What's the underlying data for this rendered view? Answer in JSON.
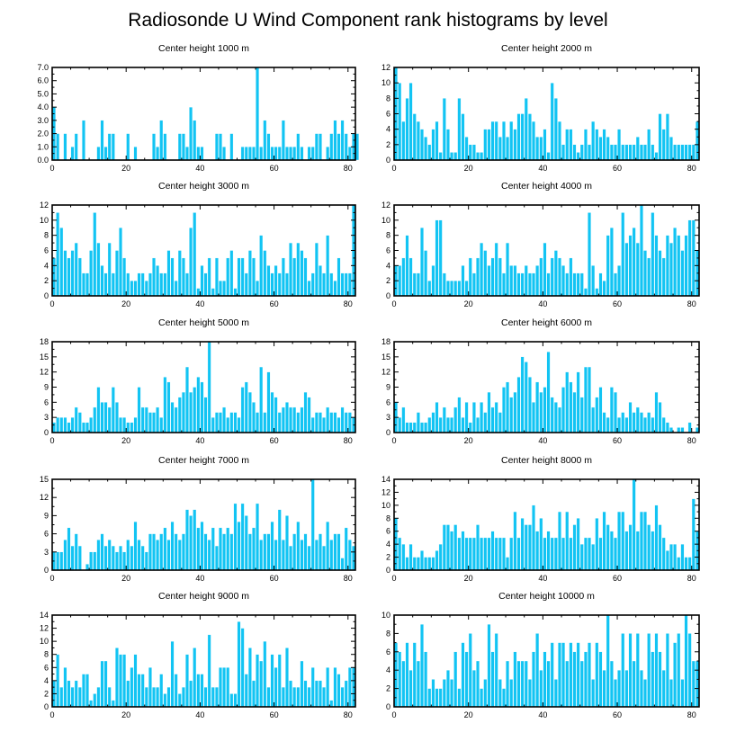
{
  "figure_title": "Radiosonde U Wind Component rank histograms by level",
  "colors": {
    "bar": "#12c4f3",
    "bar_edge": "#ffffff",
    "axis": "#000000"
  },
  "chart_data": [
    {
      "type": "bar",
      "title": "Center height 1000 m",
      "xlim": [
        0,
        82
      ],
      "xticks": [
        0,
        20,
        40,
        60,
        80
      ],
      "ylim": [
        0,
        7
      ],
      "yticks": [
        "0.0",
        "1.0",
        "2.0",
        "3.0",
        "4.0",
        "5.0",
        "6.0",
        "7.0"
      ],
      "values": [
        4,
        2,
        0,
        2,
        0,
        1,
        2,
        0,
        3,
        0,
        0,
        0,
        1,
        3,
        1,
        2,
        2,
        0,
        0,
        0,
        2,
        0,
        1,
        0,
        0,
        0,
        0,
        2,
        1,
        3,
        2,
        0,
        0,
        0,
        2,
        2,
        1,
        4,
        3,
        1,
        1,
        0,
        0,
        0,
        2,
        2,
        1,
        0,
        2,
        0,
        0,
        1,
        1,
        1,
        1,
        7,
        1,
        3,
        2,
        1,
        1,
        1,
        3,
        1,
        1,
        1,
        2,
        1,
        0,
        1,
        1,
        2,
        2,
        0,
        1,
        2,
        3,
        2,
        3,
        2,
        1,
        2,
        2
      ]
    },
    {
      "type": "bar",
      "title": "Center height 2000 m",
      "xlim": [
        0,
        82
      ],
      "xticks": [
        0,
        20,
        40,
        60,
        80
      ],
      "ylim": [
        0,
        12
      ],
      "yticks": [
        "0",
        "2",
        "4",
        "6",
        "8",
        "10",
        "12"
      ],
      "values": [
        12,
        10,
        5,
        8,
        10,
        6,
        5,
        4,
        3,
        2,
        4,
        5,
        1,
        8,
        4,
        1,
        1,
        8,
        6,
        3,
        2,
        2,
        1,
        1,
        4,
        4,
        5,
        5,
        3,
        5,
        3,
        5,
        4,
        6,
        6,
        8,
        6,
        5,
        3,
        3,
        4,
        1,
        10,
        8,
        5,
        2,
        4,
        4,
        2,
        1,
        2,
        4,
        2,
        5,
        4,
        3,
        4,
        3,
        2,
        2,
        4,
        2,
        2,
        2,
        2,
        3,
        2,
        2,
        4,
        2,
        1,
        6,
        4,
        6,
        3,
        2,
        2,
        2,
        2,
        2,
        2,
        5
      ]
    },
    {
      "type": "bar",
      "title": "Center height 3000 m",
      "xlim": [
        0,
        82
      ],
      "xticks": [
        0,
        20,
        40,
        60,
        80
      ],
      "ylim": [
        0,
        12
      ],
      "yticks": [
        "0",
        "2",
        "4",
        "6",
        "8",
        "10",
        "12"
      ],
      "values": [
        5,
        11,
        9,
        6,
        5,
        6,
        7,
        5,
        3,
        3,
        6,
        11,
        7,
        4,
        3,
        7,
        3,
        6,
        9,
        5,
        3,
        2,
        2,
        3,
        3,
        2,
        3,
        5,
        4,
        3,
        3,
        6,
        5,
        2,
        6,
        5,
        3,
        9,
        11,
        1,
        4,
        3,
        5,
        1,
        5,
        2,
        2,
        5,
        6,
        1,
        5,
        5,
        3,
        6,
        5,
        2,
        8,
        6,
        4,
        3,
        4,
        3,
        5,
        3,
        7,
        5,
        7,
        6,
        5,
        2,
        3,
        7,
        4,
        3,
        8,
        3,
        2,
        5,
        3,
        3,
        3,
        12
      ]
    },
    {
      "type": "bar",
      "title": "Center height 4000 m",
      "xlim": [
        0,
        82
      ],
      "xticks": [
        0,
        20,
        40,
        60,
        80
      ],
      "ylim": [
        0,
        12
      ],
      "yticks": [
        "0",
        "2",
        "4",
        "6",
        "8",
        "10",
        "12"
      ],
      "values": [
        4,
        4,
        5,
        8,
        5,
        3,
        3,
        9,
        6,
        2,
        4,
        10,
        10,
        3,
        2,
        2,
        2,
        2,
        4,
        2,
        5,
        3,
        5,
        7,
        6,
        4,
        5,
        7,
        5,
        3,
        7,
        4,
        4,
        3,
        3,
        4,
        3,
        3,
        4,
        5,
        7,
        3,
        5,
        6,
        5,
        4,
        3,
        5,
        3,
        3,
        3,
        1,
        11,
        4,
        1,
        3,
        2,
        8,
        9,
        3,
        4,
        11,
        7,
        8,
        9,
        7,
        12,
        6,
        5,
        11,
        8,
        6,
        5,
        8,
        7,
        9,
        8,
        6,
        8,
        10,
        10,
        6
      ]
    },
    {
      "type": "bar",
      "title": "Center height 5000 m",
      "xlim": [
        0,
        82
      ],
      "xticks": [
        0,
        20,
        40,
        60,
        80
      ],
      "ylim": [
        0,
        18
      ],
      "yticks": [
        "0",
        "3",
        "6",
        "9",
        "12",
        "15",
        "18"
      ],
      "values": [
        2,
        3,
        3,
        3,
        2,
        3,
        5,
        4,
        2,
        2,
        3,
        5,
        9,
        6,
        6,
        5,
        9,
        6,
        3,
        3,
        2,
        2,
        3,
        9,
        5,
        5,
        4,
        4,
        5,
        3,
        11,
        10,
        6,
        5,
        7,
        8,
        13,
        8,
        9,
        11,
        10,
        7,
        18,
        3,
        4,
        4,
        5,
        3,
        4,
        4,
        3,
        9,
        10,
        8,
        6,
        4,
        13,
        4,
        12,
        8,
        7,
        4,
        5,
        6,
        5,
        5,
        4,
        5,
        8,
        7,
        3,
        4,
        4,
        3,
        5,
        4,
        4,
        3,
        5,
        4,
        4,
        3
      ]
    },
    {
      "type": "bar",
      "title": "Center height 6000 m",
      "xlim": [
        0,
        82
      ],
      "xticks": [
        0,
        20,
        40,
        60,
        80
      ],
      "ylim": [
        0,
        18
      ],
      "yticks": [
        "0",
        "3",
        "6",
        "9",
        "12",
        "15",
        "18"
      ],
      "values": [
        6,
        3,
        5,
        2,
        2,
        2,
        4,
        2,
        2,
        3,
        4,
        6,
        3,
        5,
        3,
        3,
        5,
        7,
        3,
        6,
        2,
        6,
        3,
        6,
        4,
        8,
        5,
        6,
        4,
        9,
        10,
        7,
        8,
        11,
        15,
        14,
        11,
        6,
        10,
        8,
        9,
        16,
        7,
        6,
        5,
        9,
        12,
        10,
        8,
        12,
        7,
        13,
        13,
        5,
        7,
        9,
        4,
        3,
        9,
        8,
        3,
        4,
        3,
        6,
        4,
        5,
        4,
        3,
        4,
        3,
        8,
        6,
        3,
        2,
        1,
        0,
        1,
        1,
        0,
        2,
        0,
        1
      ]
    },
    {
      "type": "bar",
      "title": "Center height 7000 m",
      "xlim": [
        0,
        82
      ],
      "xticks": [
        0,
        20,
        40,
        60,
        80
      ],
      "ylim": [
        0,
        15
      ],
      "yticks": [
        "0",
        "3",
        "6",
        "9",
        "12",
        "15"
      ],
      "values": [
        3,
        3,
        3,
        5,
        7,
        4,
        6,
        4,
        0,
        1,
        3,
        3,
        5,
        6,
        4,
        5,
        4,
        3,
        4,
        3,
        5,
        4,
        8,
        5,
        4,
        3,
        6,
        6,
        5,
        6,
        7,
        5,
        8,
        6,
        5,
        6,
        10,
        9,
        10,
        7,
        8,
        6,
        5,
        7,
        4,
        7,
        6,
        7,
        6,
        11,
        8,
        11,
        9,
        6,
        7,
        11,
        5,
        6,
        6,
        8,
        5,
        10,
        5,
        9,
        4,
        6,
        8,
        5,
        6,
        4,
        15,
        5,
        6,
        4,
        8,
        5,
        6,
        6,
        2,
        7,
        5,
        4
      ]
    },
    {
      "type": "bar",
      "title": "Center height 8000 m",
      "xlim": [
        0,
        82
      ],
      "xticks": [
        0,
        20,
        40,
        60,
        80
      ],
      "ylim": [
        0,
        14
      ],
      "yticks": [
        "0",
        "2",
        "4",
        "6",
        "8",
        "10",
        "12",
        "14"
      ],
      "values": [
        8,
        5,
        4,
        2,
        4,
        2,
        2,
        3,
        2,
        2,
        2,
        3,
        4,
        7,
        7,
        6,
        7,
        5,
        6,
        5,
        5,
        5,
        7,
        5,
        5,
        5,
        6,
        5,
        5,
        5,
        2,
        5,
        9,
        5,
        8,
        7,
        7,
        10,
        6,
        8,
        5,
        6,
        5,
        5,
        9,
        5,
        9,
        5,
        7,
        8,
        4,
        5,
        5,
        4,
        8,
        5,
        9,
        7,
        6,
        5,
        9,
        9,
        6,
        7,
        14,
        6,
        9,
        9,
        7,
        6,
        10,
        7,
        5,
        3,
        4,
        4,
        2,
        4,
        2,
        2,
        11,
        6
      ]
    },
    {
      "type": "bar",
      "title": "Center height 9000 m",
      "xlim": [
        0,
        82
      ],
      "xticks": [
        0,
        20,
        40,
        60,
        80
      ],
      "ylim": [
        0,
        14
      ],
      "yticks": [
        "0",
        "2",
        "4",
        "6",
        "8",
        "10",
        "12",
        "14"
      ],
      "values": [
        4,
        8,
        3,
        6,
        4,
        3,
        4,
        3,
        5,
        5,
        1,
        2,
        3,
        7,
        7,
        3,
        1,
        9,
        8,
        8,
        4,
        6,
        8,
        5,
        5,
        3,
        6,
        3,
        3,
        5,
        2,
        3,
        10,
        5,
        2,
        3,
        8,
        4,
        9,
        5,
        5,
        3,
        11,
        3,
        3,
        6,
        6,
        6,
        2,
        2,
        13,
        12,
        5,
        9,
        4,
        8,
        7,
        10,
        3,
        8,
        6,
        8,
        3,
        9,
        4,
        3,
        3,
        7,
        4,
        3,
        6,
        4,
        4,
        3,
        6,
        1,
        6,
        5,
        3,
        4,
        6,
        6
      ]
    },
    {
      "type": "bar",
      "title": "Center height 10000 m",
      "xlim": [
        0,
        82
      ],
      "xticks": [
        0,
        20,
        40,
        60,
        80
      ],
      "ylim": [
        0,
        10
      ],
      "yticks": [
        "0",
        "2",
        "4",
        "6",
        "8",
        "10"
      ],
      "values": [
        7,
        6,
        5,
        7,
        4,
        7,
        5,
        9,
        6,
        2,
        3,
        2,
        2,
        3,
        4,
        3,
        6,
        2,
        7,
        6,
        8,
        4,
        5,
        2,
        3,
        9,
        6,
        8,
        3,
        2,
        5,
        3,
        6,
        5,
        5,
        5,
        3,
        6,
        8,
        4,
        6,
        5,
        7,
        3,
        7,
        7,
        5,
        7,
        6,
        7,
        5,
        6,
        7,
        3,
        7,
        6,
        4,
        10,
        5,
        3,
        4,
        8,
        4,
        8,
        5,
        8,
        4,
        3,
        8,
        6,
        8,
        6,
        4,
        8,
        3,
        7,
        8,
        3,
        10,
        8,
        5,
        5
      ]
    }
  ]
}
